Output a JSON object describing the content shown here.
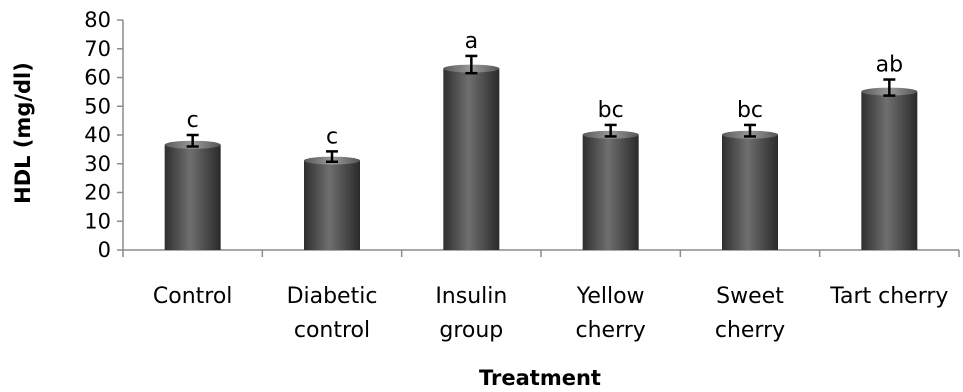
{
  "chart_data": {
    "type": "bar",
    "title": "",
    "xlabel": "Treatment",
    "ylabel": "HDL (mg/dl)",
    "ylim": [
      0,
      80
    ],
    "yticks": [
      "0",
      "10",
      "20",
      "30",
      "40",
      "50",
      "60",
      "70",
      "80"
    ],
    "categories": [
      [
        "Control"
      ],
      [
        "Diabetic",
        "control"
      ],
      [
        "Insulin",
        "group"
      ],
      [
        "Yellow",
        "cherry"
      ],
      [
        "Sweet",
        "cherry"
      ],
      [
        "Tart cherry"
      ]
    ],
    "values": [
      38,
      32.5,
      64.5,
      41.5,
      41.5,
      56.5
    ],
    "errors": [
      2,
      1.8,
      3,
      2,
      2,
      2.8
    ],
    "significance_labels": [
      "c",
      "c",
      "a",
      "bc",
      "bc",
      "ab"
    ],
    "grid": false,
    "bar_color": "#555555"
  }
}
